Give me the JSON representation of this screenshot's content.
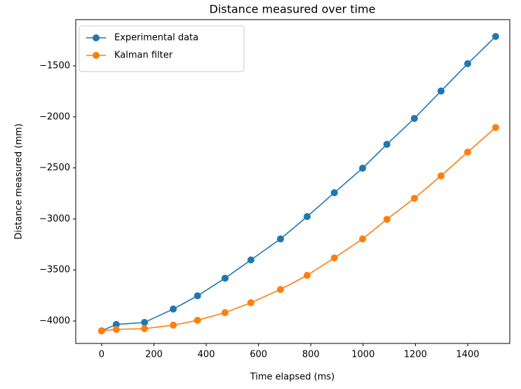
{
  "chart_data": {
    "type": "line",
    "title": "Distance measured over time",
    "x_label": "Time elapsed (ms)",
    "y_label": "Distance measured (mm)",
    "x": [
      0,
      56,
      164,
      274,
      367,
      472,
      571,
      684,
      786,
      890,
      998,
      1091,
      1196,
      1298,
      1400,
      1507
    ],
    "series": [
      {
        "name": "Experimental data",
        "color": "#1f77b4",
        "values": [
          -4096,
          -4034,
          -4014,
          -3883,
          -3753,
          -3581,
          -3402,
          -3196,
          -2977,
          -2743,
          -2503,
          -2269,
          -2015,
          -1747,
          -1479,
          -1212
        ]
      },
      {
        "name": "Kalman filter",
        "color": "#ff7f0e",
        "values": [
          -4096,
          -4082,
          -4075,
          -4041,
          -3993,
          -3918,
          -3821,
          -3691,
          -3553,
          -3382,
          -3196,
          -3004,
          -2798,
          -2578,
          -2345,
          -2104
        ]
      }
    ],
    "xlim": [
      -99,
      1561
    ],
    "ylim": [
      -4220,
      -1047
    ],
    "xticks": [
      0,
      200,
      400,
      600,
      800,
      1000,
      1200,
      1400
    ],
    "yticks": [
      {
        "value": -4000,
        "label": "−4000"
      },
      {
        "value": -3500,
        "label": "−3500"
      },
      {
        "value": -3000,
        "label": "−3000"
      },
      {
        "value": -2500,
        "label": "−2500"
      },
      {
        "value": -2000,
        "label": "−2000"
      },
      {
        "value": -1500,
        "label": "−1500"
      }
    ],
    "legend": "upper left",
    "grid": false
  }
}
